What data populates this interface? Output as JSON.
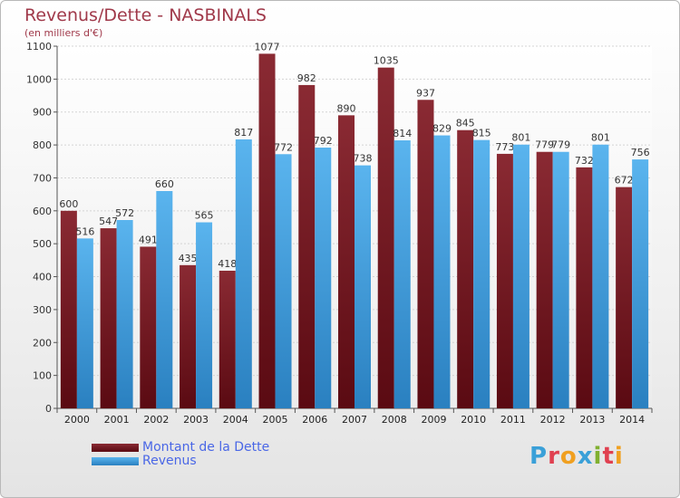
{
  "colors": {
    "dette": "#7a1a22",
    "revenus": "#4aa0dc",
    "title": "#a0394a",
    "legend_text": "#4a67e6"
  },
  "logo": {
    "text": "Proxiti",
    "letter_colors": [
      "#3aa0d8",
      "#e04050",
      "#f0a020",
      "#3aa0d8",
      "#80b030",
      "#e04050",
      "#f0a020"
    ]
  },
  "chart_data": {
    "type": "bar",
    "title": "Revenus/Dette - NASBINALS",
    "subtitle": "(en milliers d'€)",
    "xlabel": "",
    "ylabel": "",
    "ylim": [
      0,
      1100
    ],
    "yticks": [
      0,
      100,
      200,
      300,
      400,
      500,
      600,
      700,
      800,
      900,
      1000,
      1100
    ],
    "grid": true,
    "legend_position": "bottom-left",
    "categories": [
      "2000",
      "2001",
      "2002",
      "2003",
      "2004",
      "2005",
      "2006",
      "2007",
      "2008",
      "2009",
      "2010",
      "2011",
      "2012",
      "2013",
      "2014"
    ],
    "series": [
      {
        "name": "Montant de la Dette",
        "values": [
          600,
          547,
          491,
          435,
          418,
          1077,
          982,
          890,
          1035,
          937,
          845,
          773,
          779,
          732,
          672
        ]
      },
      {
        "name": "Revenus",
        "values": [
          516,
          572,
          660,
          565,
          817,
          772,
          792,
          738,
          814,
          829,
          815,
          801,
          779,
          801,
          756
        ]
      }
    ]
  }
}
